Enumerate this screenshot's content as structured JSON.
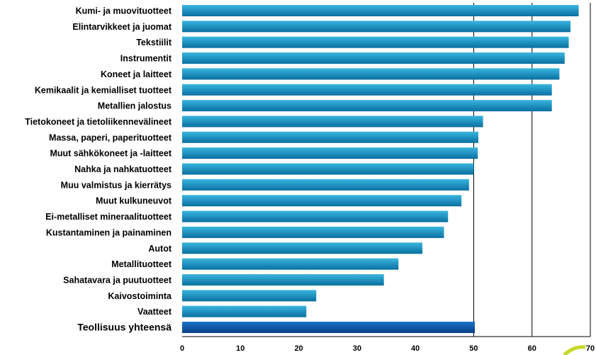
{
  "colors": {
    "bar_top": "#39b6e0",
    "bar_bottom": "#0a6fa0",
    "total_top": "#1a74c8",
    "total_bottom": "#0b3f86",
    "gridline": "#000000",
    "background": "#ffffff",
    "decoration": "#c9d82a"
  },
  "chart_data": {
    "type": "bar",
    "orientation": "horizontal",
    "title": "",
    "xlabel": "",
    "ylabel": "",
    "xlim": [
      0,
      70
    ],
    "x_ticks": [
      "0",
      "10",
      "20",
      "30",
      "40",
      "50",
      "60",
      "70"
    ],
    "grid": "vertical gridlines at 50, 60, 70",
    "legend": "none",
    "categories": [
      "Kumi- ja muovituotteet",
      "Elintarvikkeet ja juomat",
      "Tekstiilit",
      "Instrumentit",
      "Koneet ja laitteet",
      "Kemikaalit ja kemialliset tuotteet",
      "Metallien jalostus",
      "Tietokoneet  ja tietoliikennevälineet",
      "Massa, paperi, paperituotteet",
      "Muut sähkökoneet ja -laitteet",
      "Nahka ja nahkatuotteet",
      "Muu valmistus ja kierrätys",
      "Muut kulkuneuvot",
      "Ei-metalliset mineraalituotteet",
      "Kustantaminen ja painaminen",
      "Autot",
      "Metallituotteet",
      "Sahatavara ja puutuotteet",
      "Kaivostoiminta",
      "Vaatteet",
      "Teollisuus yhteensä"
    ],
    "values": [
      68.0,
      66.6,
      66.3,
      65.6,
      64.7,
      63.4,
      63.4,
      51.6,
      50.8,
      50.7,
      50.0,
      49.2,
      47.9,
      45.6,
      44.9,
      41.2,
      37.1,
      34.6,
      23.0,
      21.3,
      50.2
    ],
    "highlight_index": 20
  }
}
